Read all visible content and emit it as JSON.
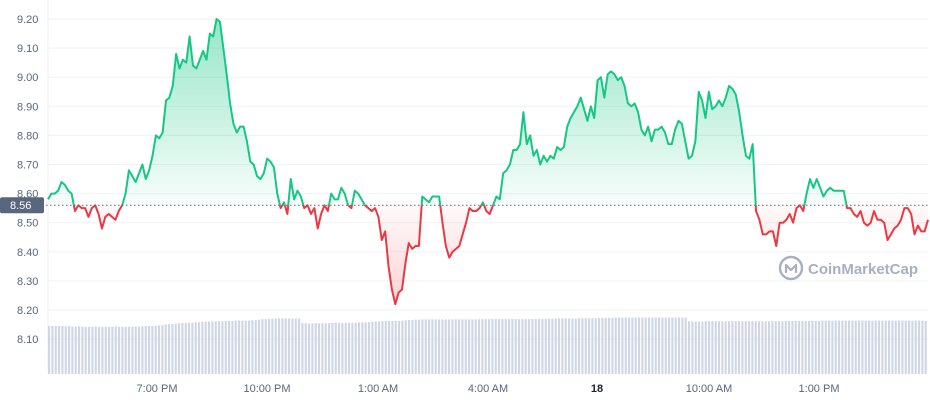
{
  "chart_data": {
    "type": "area",
    "reference_value": 8.56,
    "reference_label": "8.56",
    "ylim": [
      8.03,
      9.24
    ],
    "y_ticks": [
      "9.20",
      "9.10",
      "9.00",
      "8.90",
      "8.80",
      "8.70",
      "8.60",
      "8.50",
      "8.40",
      "8.30",
      "8.20",
      "8.10"
    ],
    "x_ticks": [
      "7:00 PM",
      "10:00 PM",
      "1:00 AM",
      "4:00 AM",
      "18",
      "10:00 AM",
      "1:00 PM"
    ],
    "x_ticks_bold": [
      "18"
    ],
    "colors": {
      "up": "#16c784",
      "down": "#ea3943",
      "volume": "#cfd6e4",
      "grid": "#eff2f5",
      "ref_badge": "#58667e"
    },
    "watermark": "CoinMarketCap",
    "series": [
      {
        "values": [
          8.58,
          8.6,
          8.6,
          8.61,
          8.64,
          8.63,
          8.61,
          8.6,
          8.54,
          8.56,
          8.55,
          8.55,
          8.52,
          8.55,
          8.56,
          8.53,
          8.48,
          8.52,
          8.53,
          8.52,
          8.51,
          8.54,
          8.56,
          8.6,
          8.68,
          8.66,
          8.64,
          8.67,
          8.7,
          8.65,
          8.68,
          8.73,
          8.8,
          8.79,
          8.81,
          8.92,
          8.93,
          8.97,
          9.08,
          9.03,
          9.06,
          9.05,
          9.14,
          9.04,
          9.03,
          9.06,
          9.09,
          9.06,
          9.15,
          9.14,
          9.2,
          9.19,
          9.1,
          9.01,
          8.91,
          8.84,
          8.81,
          8.83,
          8.83,
          8.78,
          8.71,
          8.7,
          8.66,
          8.65,
          8.67,
          8.72,
          8.71,
          8.69,
          8.6,
          8.55,
          8.57,
          8.53,
          8.65,
          8.58,
          8.61,
          8.59,
          8.55,
          8.56,
          8.53,
          8.55,
          8.48,
          8.53,
          8.56,
          8.54,
          8.6,
          8.58,
          8.58,
          8.62,
          8.6,
          8.56,
          8.55,
          8.61,
          8.6,
          8.58,
          8.56,
          8.55,
          8.54,
          8.55,
          8.52,
          8.44,
          8.47,
          8.35,
          8.27,
          8.22,
          8.26,
          8.27,
          8.36,
          8.43,
          8.41,
          8.42,
          8.42,
          8.59,
          8.58,
          8.57,
          8.59,
          8.59,
          8.59,
          8.5,
          8.42,
          8.38,
          8.4,
          8.41,
          8.42,
          8.46,
          8.5,
          8.55,
          8.54,
          8.54,
          8.55,
          8.57,
          8.54,
          8.53,
          8.56,
          8.59,
          8.58,
          8.67,
          8.68,
          8.7,
          8.75,
          8.75,
          8.77,
          8.88,
          8.77,
          8.8,
          8.73,
          8.75,
          8.7,
          8.73,
          8.71,
          8.73,
          8.72,
          8.76,
          8.75,
          8.76,
          8.83,
          8.86,
          8.88,
          8.9,
          8.93,
          8.89,
          8.85,
          8.9,
          8.86,
          8.99,
          9.0,
          8.93,
          9.01,
          9.02,
          9.01,
          8.99,
          9.0,
          8.97,
          8.91,
          8.9,
          8.91,
          8.88,
          8.82,
          8.8,
          8.83,
          8.78,
          8.82,
          8.82,
          8.83,
          8.81,
          8.77,
          8.77,
          8.82,
          8.85,
          8.84,
          8.78,
          8.72,
          8.73,
          8.78,
          8.95,
          8.92,
          8.86,
          8.95,
          8.89,
          8.9,
          8.92,
          8.9,
          8.93,
          8.97,
          8.96,
          8.94,
          8.88,
          8.8,
          8.73,
          8.72,
          8.77,
          8.54,
          8.51,
          8.46,
          8.46,
          8.47,
          8.47,
          8.42,
          8.5,
          8.5,
          8.51,
          8.53,
          8.5,
          8.55,
          8.56,
          8.54,
          8.6,
          8.65,
          8.62,
          8.65,
          8.62,
          8.59,
          8.61,
          8.62,
          8.61,
          8.61,
          8.61,
          8.61,
          8.55,
          8.55,
          8.53,
          8.52,
          8.54,
          8.5,
          8.49,
          8.5,
          8.54,
          8.51,
          8.51,
          8.5,
          8.44,
          8.46,
          8.48,
          8.49,
          8.51,
          8.55,
          8.55,
          8.53,
          8.46,
          8.49,
          8.47,
          8.47,
          8.51
        ]
      }
    ],
    "volume": [
      0.16,
      0.16,
      0.16,
      0.16,
      0.16,
      0.159,
      0.16,
      0.158,
      0.158,
      0.159,
      0.158,
      0.157,
      0.157,
      0.157,
      0.158,
      0.157,
      0.157,
      0.157,
      0.157,
      0.157,
      0.158,
      0.157,
      0.157,
      0.157,
      0.158,
      0.158,
      0.158,
      0.158,
      0.159,
      0.16,
      0.16,
      0.16,
      0.161,
      0.162,
      0.163,
      0.165,
      0.166,
      0.167,
      0.168,
      0.169,
      0.17,
      0.17,
      0.171,
      0.171,
      0.173,
      0.173,
      0.174,
      0.175,
      0.175,
      0.175,
      0.176,
      0.176,
      0.176,
      0.177,
      0.177,
      0.177,
      0.178,
      0.178,
      0.178,
      0.178,
      0.178,
      0.179,
      0.18,
      0.181,
      0.183,
      0.183,
      0.184,
      0.184,
      0.185,
      0.185,
      0.185,
      0.185,
      0.185,
      0.185,
      0.185,
      0.184,
      0.17,
      0.169,
      0.168,
      0.169,
      0.169,
      0.169,
      0.169,
      0.169,
      0.169,
      0.17,
      0.171,
      0.17,
      0.17,
      0.171,
      0.171,
      0.171,
      0.171,
      0.172,
      0.172,
      0.172,
      0.173,
      0.174,
      0.175,
      0.175,
      0.176,
      0.177,
      0.177,
      0.177,
      0.177,
      0.177,
      0.178,
      0.179,
      0.18,
      0.18,
      0.181,
      0.181,
      0.182,
      0.182,
      0.182,
      0.182,
      0.182,
      0.182,
      0.182,
      0.182,
      0.182,
      0.182,
      0.182,
      0.182,
      0.182,
      0.182,
      0.182,
      0.182,
      0.182,
      0.183,
      0.183,
      0.183,
      0.183,
      0.183,
      0.183,
      0.183,
      0.183,
      0.183,
      0.183,
      0.183,
      0.183,
      0.183,
      0.183,
      0.183,
      0.183,
      0.183,
      0.183,
      0.184,
      0.184,
      0.184,
      0.184,
      0.184,
      0.185,
      0.185,
      0.185,
      0.185,
      0.185,
      0.185,
      0.185,
      0.186,
      0.186,
      0.186,
      0.186,
      0.186,
      0.186,
      0.187,
      0.187,
      0.187,
      0.187,
      0.187,
      0.188,
      0.188,
      0.188,
      0.188,
      0.188,
      0.188,
      0.188,
      0.188,
      0.188,
      0.188,
      0.188,
      0.188,
      0.188,
      0.188,
      0.188,
      0.188,
      0.188,
      0.188,
      0.188,
      0.188,
      0.188,
      0.188,
      0.176,
      0.175,
      0.175,
      0.175,
      0.175,
      0.176,
      0.176,
      0.176,
      0.176,
      0.176,
      0.176,
      0.176,
      0.176,
      0.176,
      0.176,
      0.176,
      0.176,
      0.176,
      0.176,
      0.176,
      0.176,
      0.176,
      0.176,
      0.176,
      0.176,
      0.176,
      0.176,
      0.176,
      0.176,
      0.177,
      0.177,
      0.177,
      0.177,
      0.177,
      0.177,
      0.177,
      0.177,
      0.177,
      0.177,
      0.177,
      0.178,
      0.178,
      0.178,
      0.178,
      0.178,
      0.178,
      0.178,
      0.178,
      0.178,
      0.178,
      0.178,
      0.178,
      0.178,
      0.178,
      0.178,
      0.178,
      0.178,
      0.178,
      0.178,
      0.178,
      0.178,
      0.178,
      0.178,
      0.178,
      0.178,
      0.178,
      0.178,
      0.178,
      0.178,
      0.178,
      0.178,
      0.177
    ]
  }
}
